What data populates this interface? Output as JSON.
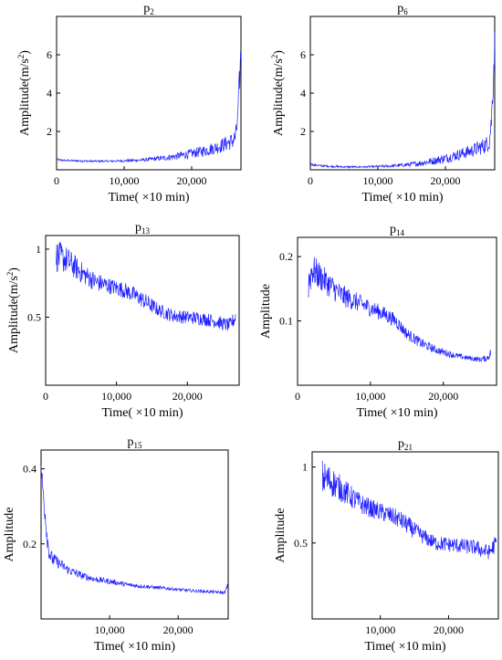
{
  "chart_data": [
    {
      "type": "line",
      "title": "p",
      "title_sub": "2",
      "xlabel": "Time( ×10 min)",
      "ylabel": "Amplitude(m/s",
      "ylabel_sup": "2",
      "ylabel_close": ")",
      "xlim": [
        0,
        27300
      ],
      "ylim": [
        0,
        8
      ],
      "xticks": [
        0,
        10000,
        20000
      ],
      "xtick_labels": [
        "0",
        "10,000",
        "20,000"
      ],
      "yticks": [
        2,
        4,
        6
      ],
      "ytick_labels": [
        "2",
        "4",
        "6"
      ],
      "color": "#1f1fff",
      "grid": false,
      "series": [
        {
          "x": [
            0,
            500,
            2000,
            5000,
            8000,
            10000,
            12000,
            14000,
            16000,
            18000,
            20000,
            22000,
            24000,
            25000,
            26000,
            26500,
            26800,
            27000,
            27300
          ],
          "y": [
            0.55,
            0.5,
            0.48,
            0.45,
            0.45,
            0.47,
            0.5,
            0.55,
            0.62,
            0.72,
            0.85,
            1.0,
            1.2,
            1.35,
            1.5,
            1.7,
            2.6,
            4.0,
            6.2
          ],
          "noise": [
            0.05,
            0.05,
            0.05,
            0.05,
            0.05,
            0.06,
            0.08,
            0.1,
            0.15,
            0.2,
            0.25,
            0.3,
            0.35,
            0.4,
            0.45,
            0.5,
            0.6,
            0.8,
            0.9
          ]
        }
      ]
    },
    {
      "type": "line",
      "title": "p",
      "title_sub": "6",
      "xlabel": "Time( ×10 min)",
      "ylabel": "Amplitude(m/s",
      "ylabel_sup": "2",
      "ylabel_close": ")",
      "xlim": [
        0,
        27300
      ],
      "ylim": [
        0,
        8
      ],
      "xticks": [
        0,
        10000,
        20000
      ],
      "xtick_labels": [
        "0",
        "10,000",
        "20,000"
      ],
      "yticks": [
        2,
        4,
        6
      ],
      "ytick_labels": [
        "2",
        "4",
        "6"
      ],
      "color": "#1f1fff",
      "grid": false,
      "series": [
        {
          "x": [
            0,
            500,
            2000,
            5000,
            8000,
            10000,
            12000,
            14000,
            16000,
            18000,
            20000,
            22000,
            24000,
            25000,
            26000,
            26500,
            26800,
            27000,
            27300
          ],
          "y": [
            0.3,
            0.25,
            0.2,
            0.15,
            0.15,
            0.17,
            0.2,
            0.25,
            0.33,
            0.45,
            0.6,
            0.8,
            1.0,
            1.15,
            1.3,
            1.5,
            2.5,
            4.0,
            6.5
          ],
          "noise": [
            0.05,
            0.05,
            0.05,
            0.05,
            0.05,
            0.06,
            0.08,
            0.1,
            0.15,
            0.2,
            0.25,
            0.3,
            0.35,
            0.4,
            0.45,
            0.5,
            0.6,
            0.8,
            0.9
          ]
        }
      ]
    },
    {
      "type": "line",
      "title": "p",
      "title_sub": "13",
      "xlabel": "Time(  ×10 min)",
      "ylabel": "Amplitude(m/s",
      "ylabel_sup": "2",
      "ylabel_close": ")",
      "xlim": [
        0,
        27300
      ],
      "ylim": [
        0,
        1.1
      ],
      "xticks": [
        0,
        10000,
        20000
      ],
      "xtick_labels": [
        "0",
        "10,000",
        "20,000"
      ],
      "yticks": [
        0.5,
        1
      ],
      "ytick_labels": [
        "0.5",
        "1"
      ],
      "color": "#1f1fff",
      "grid": false,
      "series": [
        {
          "x": [
            1500,
            3000,
            5000,
            7000,
            9000,
            11000,
            13000,
            14500,
            16000,
            18000,
            20000,
            22000,
            24000,
            25000,
            26000,
            26800
          ],
          "y": [
            0.95,
            0.92,
            0.83,
            0.76,
            0.73,
            0.7,
            0.65,
            0.6,
            0.55,
            0.51,
            0.5,
            0.49,
            0.47,
            0.45,
            0.44,
            0.5
          ],
          "noise": [
            0.12,
            0.1,
            0.08,
            0.07,
            0.06,
            0.06,
            0.06,
            0.06,
            0.05,
            0.05,
            0.05,
            0.05,
            0.05,
            0.05,
            0.05,
            0.06
          ]
        }
      ]
    },
    {
      "type": "line",
      "title": "p",
      "title_sub": "14",
      "xlabel": "Time(  ×10 min)",
      "ylabel": "Amplitude",
      "xlim": [
        0,
        27300
      ],
      "ylim": [
        0,
        0.23
      ],
      "xticks": [
        0,
        10000,
        20000
      ],
      "xtick_labels": [
        "0",
        "10,000",
        "20,000"
      ],
      "yticks": [
        0.1,
        0.2
      ],
      "ytick_labels": [
        "0.1",
        "0.2"
      ],
      "color": "#1f1fff",
      "grid": false,
      "series": [
        {
          "x": [
            1500,
            2000,
            4000,
            6000,
            8000,
            10000,
            12000,
            13500,
            15000,
            17000,
            19000,
            21000,
            23000,
            25000,
            26000,
            26500
          ],
          "y": [
            0.16,
            0.18,
            0.16,
            0.14,
            0.13,
            0.12,
            0.11,
            0.1,
            0.08,
            0.065,
            0.055,
            0.048,
            0.043,
            0.04,
            0.042,
            0.05
          ],
          "noise": [
            0.03,
            0.025,
            0.02,
            0.018,
            0.015,
            0.013,
            0.012,
            0.011,
            0.009,
            0.008,
            0.006,
            0.005,
            0.004,
            0.004,
            0.005,
            0.008
          ]
        }
      ]
    },
    {
      "type": "line",
      "title": "p",
      "title_sub": "15",
      "xlabel": "Time(  ×10 min)",
      "ylabel": "Amplitude",
      "xlim": [
        0,
        27300
      ],
      "ylim": [
        0,
        0.45
      ],
      "xticks": [
        10000,
        20000
      ],
      "xtick_labels": [
        "10,000",
        "20,000"
      ],
      "yticks": [
        0.2,
        0.4
      ],
      "ytick_labels": [
        "0.2",
        "0.4"
      ],
      "color": "#1f1fff",
      "grid": false,
      "series": [
        {
          "x": [
            0,
            300,
            700,
            1000,
            1300,
            1600,
            2500,
            4000,
            6000,
            8000,
            10000,
            13000,
            16000,
            19000,
            22000,
            25000,
            26800,
            27300
          ],
          "y": [
            0.4,
            0.34,
            0.26,
            0.2,
            0.17,
            0.16,
            0.15,
            0.13,
            0.115,
            0.105,
            0.1,
            0.09,
            0.085,
            0.08,
            0.075,
            0.072,
            0.07,
            0.09
          ],
          "noise": [
            0.03,
            0.03,
            0.03,
            0.03,
            0.02,
            0.02,
            0.015,
            0.012,
            0.01,
            0.008,
            0.007,
            0.006,
            0.005,
            0.004,
            0.004,
            0.004,
            0.004,
            0.01
          ]
        }
      ]
    },
    {
      "type": "line",
      "title": "p",
      "title_sub": "21",
      "xlabel": "Time(  ×10 min)",
      "ylabel": "Amplitude",
      "xlim": [
        0,
        27300
      ],
      "ylim": [
        0,
        1.1
      ],
      "xticks": [
        10000,
        20000
      ],
      "xtick_labels": [
        "10,000",
        "20,000"
      ],
      "yticks": [
        0.5,
        1
      ],
      "ytick_labels": [
        "0.5",
        "1"
      ],
      "color": "#1f1fff",
      "grid": false,
      "series": [
        {
          "x": [
            1500,
            3000,
            5000,
            7000,
            9000,
            11000,
            13000,
            14500,
            16000,
            18000,
            20000,
            22000,
            24000,
            25000,
            26000,
            27000
          ],
          "y": [
            0.93,
            0.9,
            0.83,
            0.76,
            0.72,
            0.69,
            0.65,
            0.6,
            0.55,
            0.5,
            0.49,
            0.48,
            0.47,
            0.45,
            0.44,
            0.5
          ],
          "noise": [
            0.12,
            0.1,
            0.08,
            0.07,
            0.06,
            0.06,
            0.06,
            0.06,
            0.05,
            0.05,
            0.05,
            0.05,
            0.05,
            0.05,
            0.05,
            0.06
          ]
        }
      ]
    }
  ]
}
